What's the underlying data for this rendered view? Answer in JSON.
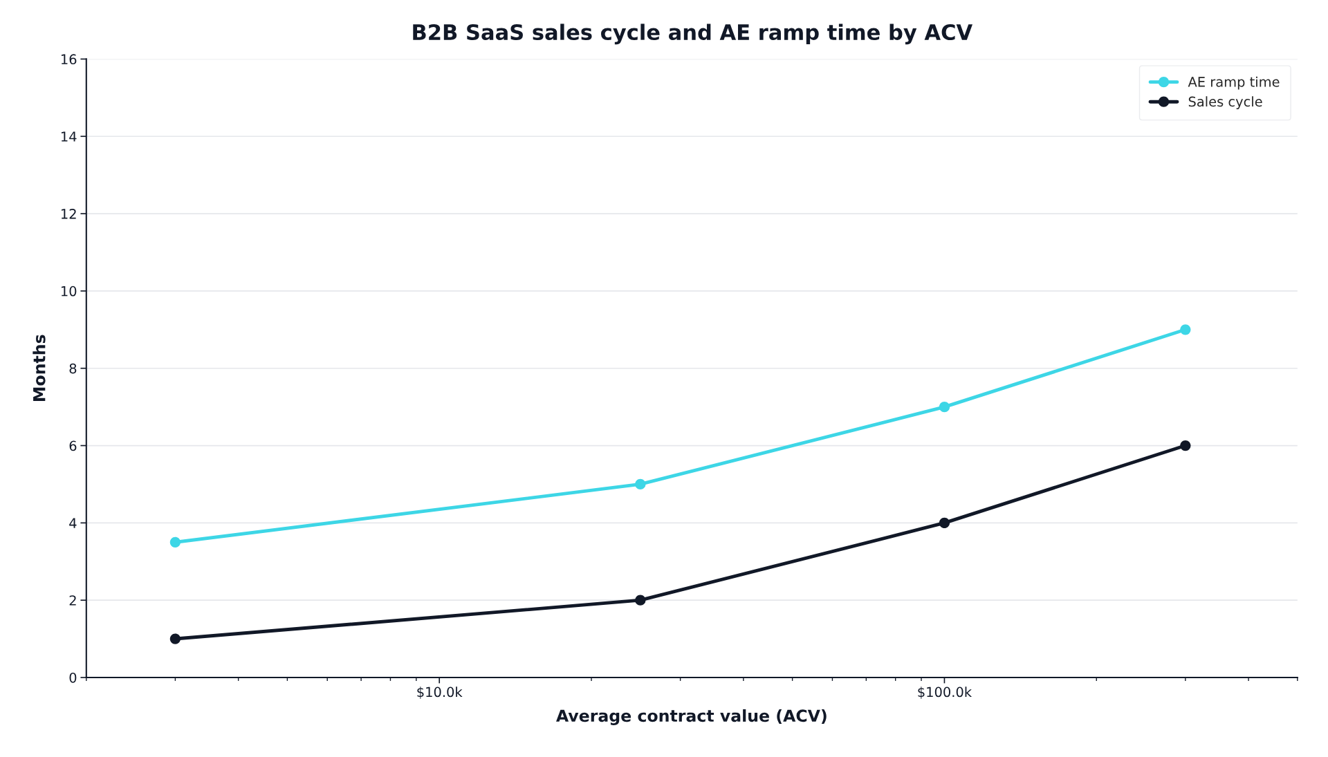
{
  "chart_data": {
    "type": "line",
    "title": "B2B SaaS sales cycle and AE ramp time by ACV",
    "xlabel": "Average contract value (ACV)",
    "ylabel": "Months",
    "log": "x",
    "x": [
      3000,
      25000,
      100000,
      300000
    ],
    "series": [
      {
        "name": "AE ramp time",
        "color": "#3dd6e6",
        "values": [
          3.5,
          5,
          7,
          9
        ]
      },
      {
        "name": "Sales cycle",
        "color": "#111827",
        "values": [
          1,
          2,
          4,
          6
        ]
      }
    ],
    "xlim": [
      2000,
      500000
    ],
    "xticks": [
      {
        "value": 10000,
        "label": "$10.0k"
      },
      {
        "value": 100000,
        "label": "$100.0k"
      }
    ],
    "ylim": [
      0,
      16
    ],
    "yticks": [
      0,
      2,
      4,
      6,
      8,
      10,
      12,
      14,
      16
    ],
    "grid": "y",
    "legend": "top right",
    "marker": "circle",
    "line_style": "solid"
  }
}
